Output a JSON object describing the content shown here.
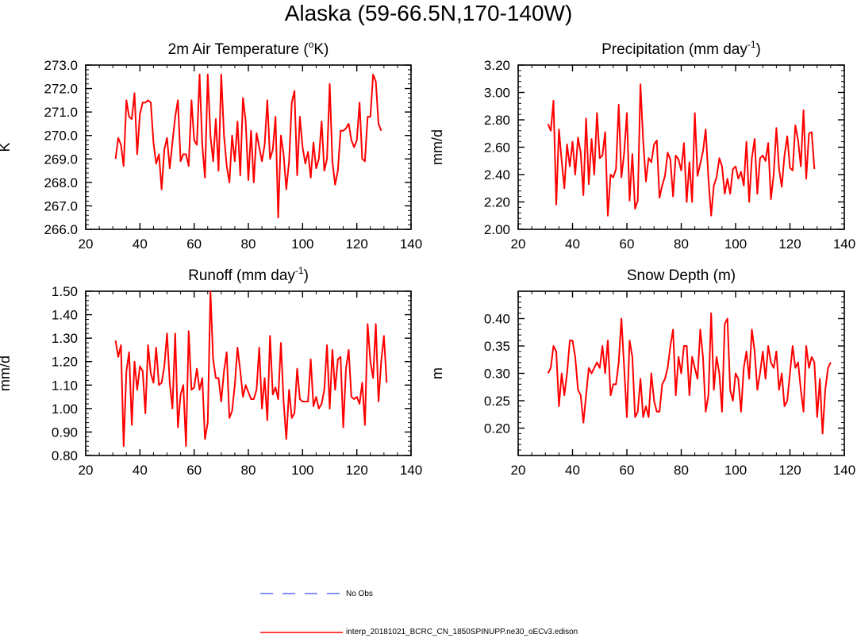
{
  "figure": {
    "title": "Alaska (59-66.5N,170-140W)"
  },
  "colors": {
    "model": "#ff0000",
    "obs": "#5a6bff",
    "axis": "#000000"
  },
  "legend": {
    "entries": [
      {
        "label": "No Obs",
        "style": "dashed",
        "color": "#5a6bff"
      },
      {
        "label": "interp_20181021_BCRC_CN_1850SPINUPP.ne30_oECv3.edison",
        "style": "solid",
        "color": "#ff0000"
      }
    ]
  },
  "chart_data": [
    {
      "type": "line",
      "id": "temp",
      "title": "2m Air Temperature (°K)",
      "title_parts": {
        "pre": "2m Air Temperature (",
        "sup": "o",
        "post": "K)"
      },
      "xlabel": "",
      "ylabel": "K",
      "xlim": [
        20,
        140
      ],
      "ylim": [
        266.0,
        273.0
      ],
      "xticks": [
        20,
        40,
        60,
        80,
        100,
        120,
        140
      ],
      "xtick_labels": [
        "20",
        "40",
        "60",
        "80",
        "100",
        "120",
        "140"
      ],
      "yticks": [
        266.0,
        267.0,
        268.0,
        269.0,
        270.0,
        271.0,
        272.0,
        273.0
      ],
      "ytick_labels": [
        "266.0",
        "267.0",
        "268.0",
        "269.0",
        "270.0",
        "271.0",
        "272.0",
        "273.0"
      ],
      "series": [
        {
          "name": "interp_20181021_BCRC_CN_1850SPINUPP.ne30_oECv3.edison",
          "x_start": 31,
          "values": [
            269.0,
            269.9,
            269.6,
            268.7,
            271.5,
            270.8,
            270.7,
            271.8,
            269.2,
            270.9,
            271.4,
            271.4,
            271.5,
            271.4,
            269.7,
            268.8,
            269.2,
            267.7,
            269.4,
            269.9,
            268.6,
            269.7,
            270.8,
            271.5,
            268.9,
            269.2,
            269.2,
            268.7,
            271.5,
            269.8,
            269.6,
            272.6,
            269.6,
            268.2,
            272.6,
            270.0,
            268.9,
            270.7,
            268.5,
            272.6,
            270.0,
            268.7,
            268.0,
            270.0,
            268.9,
            270.6,
            268.3,
            271.6,
            270.6,
            268.1,
            270.2,
            268.0,
            270.1,
            269.5,
            268.9,
            269.6,
            271.5,
            269.0,
            269.4,
            270.8,
            266.5,
            270.0,
            269.2,
            267.7,
            268.9,
            271.4,
            271.9,
            268.3,
            270.8,
            269.5,
            268.8,
            269.3,
            268.2,
            269.7,
            268.6,
            269.0,
            270.6,
            268.5,
            269.0,
            272.2,
            268.9,
            267.9,
            268.5,
            270.2,
            270.2,
            270.3,
            270.5,
            269.8,
            269.5,
            269.8,
            271.4,
            269.0,
            268.9,
            270.8,
            270.8,
            272.6,
            272.3,
            270.5,
            270.2
          ]
        }
      ]
    },
    {
      "type": "line",
      "id": "precip",
      "title": "Precipitation (mm day-1)",
      "title_parts": {
        "pre": "Precipitation (mm day",
        "sup": "-1",
        "post": ")"
      },
      "xlabel": "",
      "ylabel": "mm/d",
      "xlim": [
        20,
        140
      ],
      "ylim": [
        2.0,
        3.2
      ],
      "xticks": [
        20,
        40,
        60,
        80,
        100,
        120,
        140
      ],
      "xtick_labels": [
        "20",
        "40",
        "60",
        "80",
        "100",
        "120",
        "140"
      ],
      "yticks": [
        2.0,
        2.2,
        2.4,
        2.6,
        2.8,
        3.0,
        3.2
      ],
      "ytick_labels": [
        "2.00",
        "2.20",
        "2.40",
        "2.60",
        "2.80",
        "3.00",
        "3.20"
      ],
      "series": [
        {
          "name": "interp_20181021_BCRC_CN_1850SPINUPP.ne30_oECv3.edison",
          "x_start": 31,
          "values": [
            2.77,
            2.72,
            2.94,
            2.18,
            2.73,
            2.5,
            2.3,
            2.62,
            2.46,
            2.64,
            2.4,
            2.67,
            2.56,
            2.25,
            2.81,
            2.33,
            2.66,
            2.4,
            2.85,
            2.52,
            2.54,
            2.71,
            2.1,
            2.4,
            2.38,
            2.44,
            2.91,
            2.38,
            2.56,
            2.85,
            2.21,
            2.55,
            2.15,
            2.21,
            3.06,
            2.65,
            2.35,
            2.52,
            2.49,
            2.62,
            2.65,
            2.23,
            2.32,
            2.39,
            2.56,
            2.51,
            2.24,
            2.54,
            2.51,
            2.43,
            2.63,
            2.2,
            2.49,
            2.2,
            2.85,
            2.39,
            2.48,
            2.57,
            2.73,
            2.37,
            2.1,
            2.32,
            2.38,
            2.52,
            2.46,
            2.26,
            2.37,
            2.26,
            2.44,
            2.46,
            2.37,
            2.42,
            2.32,
            2.64,
            2.2,
            2.52,
            2.66,
            2.26,
            2.52,
            2.54,
            2.5,
            2.63,
            2.22,
            2.4,
            2.74,
            2.44,
            2.31,
            2.54,
            2.68,
            2.45,
            2.43,
            2.76,
            2.65,
            2.46,
            2.87,
            2.37,
            2.7,
            2.71,
            2.44
          ]
        }
      ]
    },
    {
      "type": "line",
      "id": "runoff",
      "title": "Runoff (mm day-1)",
      "title_parts": {
        "pre": "Runoff (mm day",
        "sup": "-1",
        "post": ")"
      },
      "xlabel": "",
      "ylabel": "mm/d",
      "xlim": [
        20,
        140
      ],
      "ylim": [
        0.8,
        1.5
      ],
      "xticks": [
        20,
        40,
        60,
        80,
        100,
        120,
        140
      ],
      "xtick_labels": [
        "20",
        "40",
        "60",
        "80",
        "100",
        "120",
        "140"
      ],
      "yticks": [
        0.8,
        0.9,
        1.0,
        1.1,
        1.2,
        1.3,
        1.4,
        1.5
      ],
      "ytick_labels": [
        "0.80",
        "0.90",
        "1.00",
        "1.10",
        "1.20",
        "1.30",
        "1.40",
        "1.50"
      ],
      "series": [
        {
          "name": "interp_20181021_BCRC_CN_1850SPINUPP.ne30_oECv3.edison",
          "x_start": 31,
          "values": [
            1.29,
            1.22,
            1.27,
            0.84,
            1.16,
            1.24,
            0.93,
            1.2,
            1.08,
            1.18,
            1.16,
            0.98,
            1.27,
            1.15,
            1.11,
            1.26,
            1.1,
            1.11,
            1.18,
            1.32,
            1.11,
            1.0,
            1.32,
            0.92,
            1.06,
            1.1,
            0.84,
            1.33,
            1.08,
            1.09,
            1.17,
            1.08,
            1.13,
            0.87,
            0.94,
            1.5,
            1.21,
            1.13,
            1.13,
            1.03,
            1.16,
            1.24,
            0.96,
            0.99,
            1.1,
            1.26,
            1.16,
            1.05,
            1.1,
            1.07,
            1.04,
            1.04,
            1.08,
            1.26,
            1.0,
            1.13,
            0.95,
            1.31,
            1.06,
            1.09,
            1.04,
            1.28,
            1.03,
            0.87,
            1.08,
            0.96,
            0.98,
            1.17,
            1.04,
            1.03,
            1.03,
            1.03,
            1.21,
            1.01,
            1.05,
            1.0,
            1.02,
            1.08,
            1.27,
            1.0,
            1.25,
            1.08,
            1.21,
            1.22,
            0.92,
            1.17,
            1.25,
            1.05,
            1.04,
            1.05,
            1.02,
            1.11,
            0.93,
            1.36,
            1.2,
            1.13,
            1.36,
            1.03,
            1.2,
            1.31,
            1.11
          ]
        }
      ]
    },
    {
      "type": "line",
      "id": "snow",
      "title": "Snow Depth (m)",
      "title_parts": {
        "pre": "Snow Depth (m)",
        "sup": "",
        "post": ""
      },
      "xlabel": "",
      "ylabel": "m",
      "xlim": [
        20,
        140
      ],
      "ylim": [
        0.15,
        0.45
      ],
      "xticks": [
        20,
        40,
        60,
        80,
        100,
        120,
        140
      ],
      "xtick_labels": [
        "20",
        "40",
        "60",
        "80",
        "100",
        "120",
        "140"
      ],
      "yticks": [
        0.2,
        0.25,
        0.3,
        0.35,
        0.4
      ],
      "ytick_labels": [
        "0.20",
        "0.25",
        "0.30",
        "0.35",
        "0.40"
      ],
      "series": [
        {
          "name": "interp_20181021_BCRC_CN_1850SPINUPP.ne30_oECv3.edison",
          "x_start": 31,
          "values": [
            0.3,
            0.31,
            0.35,
            0.34,
            0.24,
            0.3,
            0.26,
            0.3,
            0.36,
            0.36,
            0.33,
            0.27,
            0.26,
            0.21,
            0.26,
            0.31,
            0.3,
            0.31,
            0.32,
            0.31,
            0.35,
            0.3,
            0.36,
            0.26,
            0.28,
            0.28,
            0.32,
            0.4,
            0.31,
            0.22,
            0.36,
            0.33,
            0.22,
            0.23,
            0.29,
            0.22,
            0.24,
            0.22,
            0.3,
            0.25,
            0.23,
            0.23,
            0.28,
            0.29,
            0.31,
            0.35,
            0.38,
            0.26,
            0.33,
            0.3,
            0.35,
            0.35,
            0.26,
            0.33,
            0.31,
            0.29,
            0.38,
            0.33,
            0.23,
            0.26,
            0.41,
            0.27,
            0.33,
            0.3,
            0.23,
            0.39,
            0.4,
            0.27,
            0.25,
            0.3,
            0.29,
            0.23,
            0.31,
            0.34,
            0.29,
            0.38,
            0.34,
            0.27,
            0.3,
            0.34,
            0.29,
            0.35,
            0.32,
            0.31,
            0.34,
            0.27,
            0.3,
            0.24,
            0.25,
            0.3,
            0.35,
            0.31,
            0.32,
            0.27,
            0.23,
            0.35,
            0.31,
            0.33,
            0.32,
            0.22,
            0.29,
            0.19,
            0.27,
            0.31,
            0.32
          ]
        }
      ]
    }
  ]
}
